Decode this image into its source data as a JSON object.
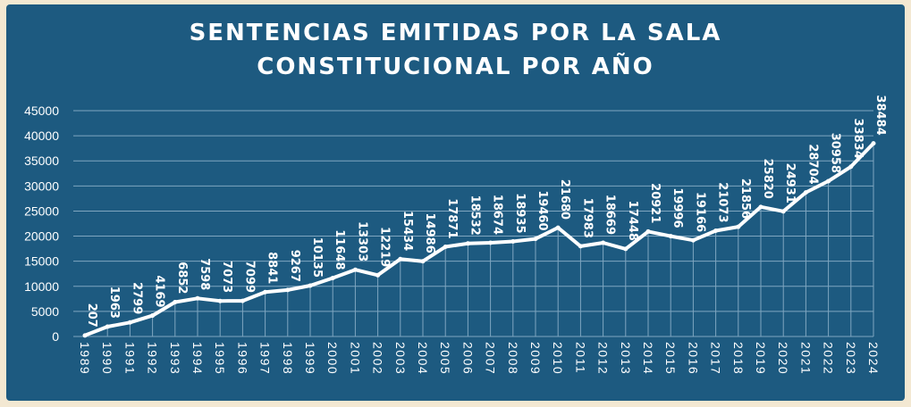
{
  "title_line1": "SENTENCIAS EMITIDAS POR LA SALA",
  "title_line2": "CONSTITUCIONAL POR AÑO",
  "colors": {
    "background": "#f3e8d2",
    "panel": "#1d5a80",
    "line": "#ffffff",
    "text": "#ffffff",
    "grid": "#7fa6c0"
  },
  "chart_data": {
    "type": "line",
    "title": "SENTENCIAS EMITIDAS POR LA SALA CONSTITUCIONAL POR AÑO",
    "xlabel": "",
    "ylabel": "",
    "ylim": [
      0,
      45000
    ],
    "yticks": [
      0,
      5000,
      10000,
      15000,
      20000,
      25000,
      30000,
      35000,
      40000,
      45000
    ],
    "grid": true,
    "legend": "none",
    "x": [
      "1989",
      "1990",
      "1991",
      "1992",
      "1993",
      "1994",
      "1995",
      "1996",
      "1997",
      "1998",
      "1999",
      "2000",
      "2001",
      "2002",
      "2003",
      "2004",
      "2005",
      "2006",
      "2007",
      "2008",
      "2009",
      "2010",
      "2011",
      "2012",
      "2013",
      "2014",
      "2015",
      "2016",
      "2017",
      "2018",
      "2019",
      "2020",
      "2021",
      "2022",
      "2023",
      "2024"
    ],
    "values": [
      207,
      1963,
      2799,
      4169,
      6852,
      7598,
      7073,
      7099,
      8841,
      9267,
      10135,
      11648,
      13303,
      12219,
      15434,
      14986,
      17871,
      18532,
      18674,
      18935,
      19460,
      21680,
      17983,
      18669,
      17448,
      20921,
      19996,
      19166,
      21073,
      21856,
      25820,
      24931,
      28704,
      30958,
      33834,
      38484
    ]
  }
}
